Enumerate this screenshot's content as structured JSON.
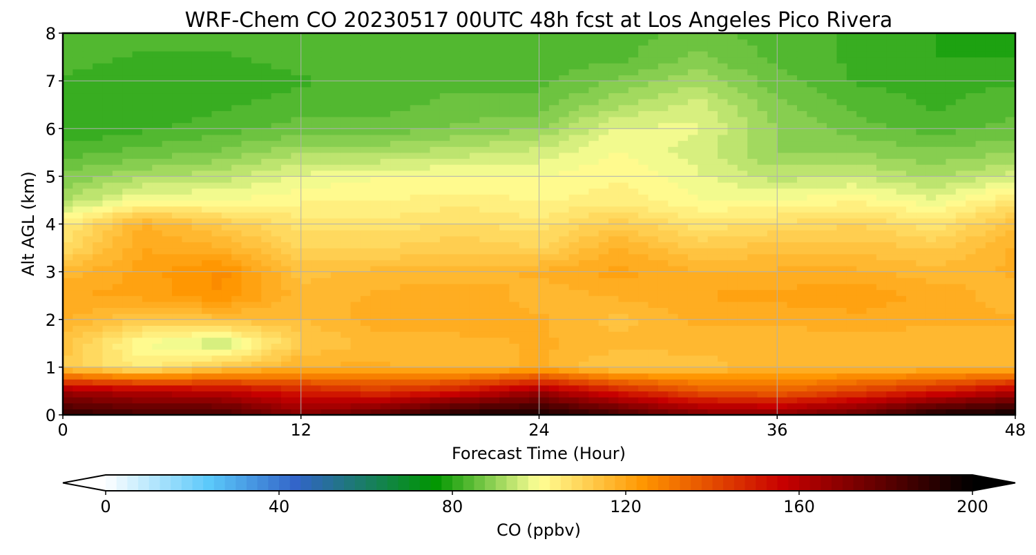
{
  "chart_data": {
    "type": "heatmap",
    "title": "WRF-Chem CO  20230517 00UTC 48h fcst at Los Angeles Pico Rivera",
    "xlabel": "Forecast Time (Hour)",
    "ylabel": "Alt AGL (km)",
    "xlim": [
      0,
      48
    ],
    "ylim": [
      0,
      8
    ],
    "xticks": [
      "0",
      "12",
      "24",
      "36",
      "48"
    ],
    "yticks": [
      "0",
      "1",
      "2",
      "3",
      "4",
      "5",
      "6",
      "7",
      "8"
    ],
    "grid": true,
    "colorbar": {
      "label": "CO  (ppbv)",
      "range": [
        0,
        200
      ],
      "extend": "both",
      "ticks": [
        "0",
        "40",
        "80",
        "120",
        "160",
        "200"
      ],
      "colors": [
        "#ffffff",
        "#5ac8fa",
        "#3264c8",
        "#009600",
        "#ffff96",
        "#ff9600",
        "#c80000",
        "#000000"
      ]
    },
    "x": [
      0,
      4,
      8,
      12,
      16,
      20,
      24,
      28,
      32,
      36,
      40,
      44,
      48
    ],
    "y": [
      0,
      0.5,
      1,
      1.5,
      2,
      2.5,
      3,
      3.5,
      4,
      4.5,
      5,
      5.5,
      6,
      6.5,
      7,
      7.5,
      8
    ],
    "values": [
      [
        190,
        185,
        185,
        170,
        180,
        195,
        195,
        185,
        172,
        170,
        178,
        195,
        198
      ],
      [
        165,
        160,
        158,
        150,
        145,
        152,
        165,
        150,
        138,
        135,
        142,
        150,
        160
      ],
      [
        112,
        104,
        112,
        118,
        118,
        116,
        118,
        112,
        114,
        116,
        116,
        116,
        116
      ],
      [
        114,
        100,
        94,
        112,
        116,
        116,
        118,
        116,
        116,
        116,
        116,
        116,
        116
      ],
      [
        118,
        112,
        114,
        115,
        119,
        120,
        118,
        114,
        118,
        118,
        119,
        118,
        118
      ],
      [
        120,
        121,
        125,
        116,
        118,
        120,
        116,
        118,
        120,
        121,
        122,
        119,
        116
      ],
      [
        116,
        121,
        126,
        114,
        116,
        116,
        118,
        121,
        118,
        118,
        118,
        116,
        118
      ],
      [
        108,
        120,
        118,
        110,
        110,
        112,
        110,
        118,
        112,
        114,
        114,
        112,
        118
      ],
      [
        104,
        118,
        112,
        106,
        106,
        108,
        106,
        112,
        106,
        108,
        110,
        106,
        114
      ],
      [
        92,
        100,
        100,
        102,
        102,
        104,
        102,
        104,
        100,
        100,
        102,
        98,
        106
      ],
      [
        88,
        92,
        94,
        98,
        100,
        100,
        100,
        102,
        98,
        94,
        95,
        92,
        96
      ],
      [
        84,
        86,
        88,
        92,
        92,
        94,
        96,
        100,
        96,
        90,
        90,
        88,
        90
      ],
      [
        80,
        82,
        84,
        86,
        86,
        88,
        90,
        98,
        98,
        90,
        86,
        84,
        86
      ],
      [
        80,
        80,
        82,
        84,
        84,
        86,
        86,
        92,
        96,
        88,
        84,
        82,
        84
      ],
      [
        82,
        80,
        80,
        82,
        84,
        84,
        84,
        88,
        92,
        86,
        82,
        82,
        82
      ],
      [
        84,
        82,
        82,
        84,
        84,
        84,
        84,
        84,
        88,
        84,
        82,
        80,
        80
      ],
      [
        84,
        84,
        84,
        84,
        84,
        84,
        84,
        84,
        86,
        84,
        82,
        80,
        78
      ]
    ]
  }
}
